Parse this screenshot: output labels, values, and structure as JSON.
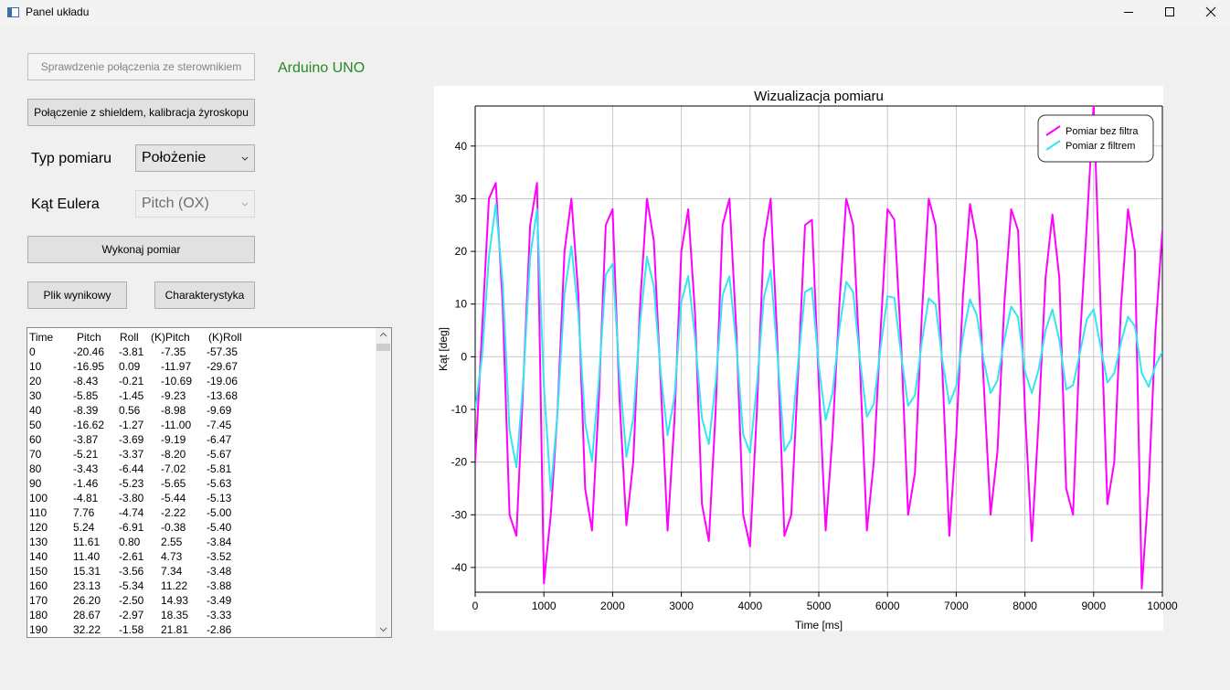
{
  "window": {
    "title": "Panel układu",
    "check_button": "Sprawdzenie połączenia ze sterownikiem",
    "device": "Arduino UNO",
    "connect_button": "Połączenie z shieldem, kalibracja żyroskopu",
    "measure_type_label": "Typ pomiaru",
    "measure_type_value": "Położenie",
    "euler_label": "Kąt Eulera",
    "euler_value": "Pitch (OX)",
    "run_button": "Wykonaj pomiar",
    "file_button": "Plik wynikowy",
    "char_button": "Charakterystyka"
  },
  "table": {
    "columns": [
      "Time",
      "Pitch",
      "Roll",
      "(K)Pitch",
      "(K)Roll"
    ],
    "rows": [
      [
        "0",
        "-20.46",
        "-3.81",
        "-7.35",
        "-57.35"
      ],
      [
        "10",
        "-16.95",
        "0.09",
        "-11.97",
        "-29.67"
      ],
      [
        "20",
        "-8.43",
        "-0.21",
        "-10.69",
        "-19.06"
      ],
      [
        "30",
        "-5.85",
        "-1.45",
        "-9.23",
        "-13.68"
      ],
      [
        "40",
        "-8.39",
        "0.56",
        "-8.98",
        "-9.69"
      ],
      [
        "50",
        "-16.62",
        "-1.27",
        "-11.00",
        "-7.45"
      ],
      [
        "60",
        "-3.87",
        "-3.69",
        "-9.19",
        "-6.47"
      ],
      [
        "70",
        "-5.21",
        "-3.37",
        "-8.20",
        "-5.67"
      ],
      [
        "80",
        "-3.43",
        "-6.44",
        "-7.02",
        "-5.81"
      ],
      [
        "90",
        "-1.46",
        "-5.23",
        "-5.65",
        "-5.63"
      ],
      [
        "100",
        "-4.81",
        "-3.80",
        "-5.44",
        "-5.13"
      ],
      [
        "110",
        "7.76",
        "-4.74",
        "-2.22",
        "-5.00"
      ],
      [
        "120",
        "5.24",
        "-6.91",
        "-0.38",
        "-5.40"
      ],
      [
        "130",
        "11.61",
        "0.80",
        "2.55",
        "-3.84"
      ],
      [
        "140",
        "11.40",
        "-2.61",
        "4.73",
        "-3.52"
      ],
      [
        "150",
        "15.31",
        "-3.56",
        "7.34",
        "-3.48"
      ],
      [
        "160",
        "23.13",
        "-5.34",
        "11.22",
        "-3.88"
      ],
      [
        "170",
        "26.20",
        "-2.50",
        "14.93",
        "-3.49"
      ],
      [
        "180",
        "28.67",
        "-2.97",
        "18.35",
        "-3.33"
      ],
      [
        "190",
        "32.22",
        "-1.58",
        "21.81",
        "-2.86"
      ]
    ]
  },
  "chart_data": {
    "type": "line",
    "title": "Wizualizacja pomiaru",
    "xlabel": "Time [ms]",
    "ylabel": "Kąt [deg]",
    "x": [
      0,
      100,
      200,
      300,
      400,
      500,
      600,
      700,
      800,
      900,
      1000,
      1100,
      1200,
      1300,
      1400,
      1500,
      1600,
      1700,
      1800,
      1900,
      2000,
      2100,
      2200,
      2300,
      2400,
      2500,
      2600,
      2700,
      2800,
      2900,
      3000,
      3100,
      3200,
      3300,
      3400,
      3500,
      3600,
      3700,
      3800,
      3900,
      4000,
      4100,
      4200,
      4300,
      4400,
      4500,
      4600,
      4700,
      4800,
      4900,
      5000,
      5100,
      5200,
      5300,
      5400,
      5500,
      5600,
      5700,
      5800,
      5900,
      6000,
      6100,
      6200,
      6300,
      6400,
      6500,
      6600,
      6700,
      6800,
      6900,
      7000,
      7100,
      7200,
      7300,
      7400,
      7500,
      7600,
      7700,
      7800,
      7900,
      8000,
      8100,
      8200,
      8300,
      8400,
      8500,
      8600,
      8700,
      8800,
      8900,
      9000,
      9100,
      9200,
      9300,
      9400,
      9500,
      9600,
      9700,
      9800,
      9900,
      10000
    ],
    "series": [
      {
        "name": "Pomiar bez filtra",
        "color": "#ff00ff",
        "values": [
          -20,
          5,
          30,
          33,
          10,
          -30,
          -34,
          -5,
          25,
          33,
          -43,
          -30,
          -10,
          20,
          30,
          12,
          -25,
          -33,
          -8,
          25,
          28,
          -8,
          -32,
          -20,
          10,
          30,
          22,
          -5,
          -33,
          -12,
          20,
          28,
          8,
          -28,
          -35,
          -10,
          25,
          30,
          5,
          -30,
          -36,
          -10,
          22,
          30,
          2,
          -34,
          -30,
          -3,
          25,
          26,
          -5,
          -33,
          -15,
          10,
          30,
          25,
          -2,
          -33,
          -20,
          5,
          28,
          26,
          2,
          -30,
          -22,
          8,
          30,
          25,
          -3,
          -34,
          -15,
          12,
          29,
          22,
          -5,
          -30,
          -18,
          10,
          28,
          24,
          -10,
          -35,
          -12,
          15,
          27,
          15,
          -25,
          -30,
          3,
          25,
          48,
          10,
          -28,
          -20,
          10,
          28,
          20,
          -44,
          -25,
          5,
          24
        ]
      },
      {
        "name": "Pomiar z filtrem",
        "color": "#33e6f0",
        "values": [
          -10,
          0,
          19,
          29,
          14,
          -14,
          -21,
          -4.5,
          19,
          28,
          -5.5,
          -25.5,
          -10.5,
          12,
          21,
          8.3,
          -12.6,
          -19.8,
          -4.4,
          15.6,
          17.6,
          -3.4,
          -19,
          -11.8,
          6.5,
          19,
          13.3,
          -3.1,
          -14.9,
          -7.6,
          10.4,
          15.3,
          3.5,
          -11.7,
          -16.6,
          -4.8,
          11.7,
          15.3,
          2.3,
          -14.8,
          -18.2,
          -5.3,
          11.2,
          16.4,
          0.1,
          -17.9,
          -15.6,
          -1,
          12.3,
          13.1,
          -1.7,
          -12,
          -6.9,
          5.3,
          14.2,
          12.3,
          -0.7,
          -11.4,
          -9,
          1.8,
          11.5,
          11.2,
          0.1,
          -9.3,
          -7.3,
          2.8,
          11.1,
          9.9,
          -0.8,
          -8.9,
          -5.6,
          4,
          10.9,
          7.9,
          -0.7,
          -6.9,
          -4.5,
          3.2,
          9.5,
          7.5,
          -2.8,
          -6.9,
          -2.4,
          5,
          9,
          3.2,
          -6.2,
          -5.4,
          0.7,
          7.1,
          9,
          2,
          -4.9,
          -3.1,
          2.8,
          7.6,
          5.8,
          -3.1,
          -5.7,
          -1.7,
          1
        ]
      }
    ],
    "xlim": [
      0,
      10000
    ],
    "xticks": [
      0,
      1000,
      2000,
      3000,
      4000,
      5000,
      6000,
      7000,
      8000,
      9000,
      10000
    ],
    "ylim": [
      -44.7,
      47.6
    ],
    "yticks": [
      -40,
      -30,
      -20,
      -10,
      0,
      10,
      20,
      30,
      40
    ],
    "grid": true,
    "legend": "upper right"
  }
}
